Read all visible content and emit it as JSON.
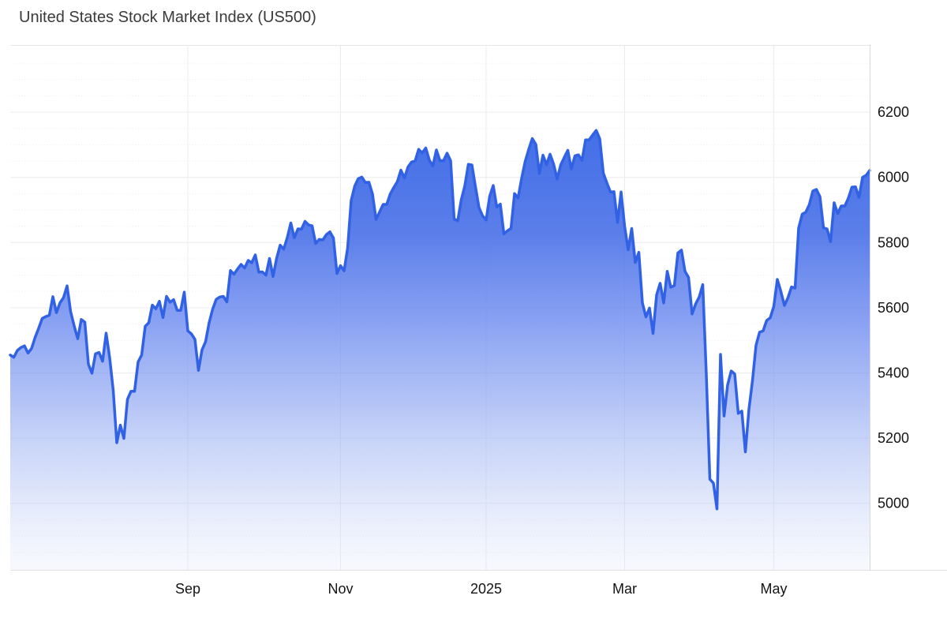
{
  "page": {
    "background": "#ffffff"
  },
  "chart_data": {
    "type": "area",
    "title": "United States Stock Market Index (US500)",
    "symbol": "US500",
    "legend": false,
    "grid": true,
    "y_axis": {
      "side": "right",
      "ticks": [
        6200,
        6000,
        5800,
        5600,
        5400,
        5200,
        5000
      ],
      "minor_step": 50,
      "ylim": [
        4796,
        6406
      ]
    },
    "x_axis": {
      "tick_labels": [
        "Sep",
        "Nov",
        "2025",
        "Mar",
        "May"
      ],
      "tick_indices": [
        50,
        93,
        134,
        173,
        215
      ]
    },
    "series": [
      {
        "name": "US500",
        "values": [
          5455,
          5448,
          5469,
          5478,
          5483,
          5461,
          5475,
          5509,
          5537,
          5567,
          5573,
          5577,
          5634,
          5585,
          5615,
          5631,
          5667,
          5588,
          5544,
          5505,
          5564,
          5556,
          5427,
          5399,
          5459,
          5463,
          5436,
          5522,
          5446,
          5346,
          5186,
          5240,
          5199,
          5319,
          5344,
          5344,
          5434,
          5455,
          5543,
          5554,
          5608,
          5597,
          5620,
          5570,
          5635,
          5617,
          5625,
          5592,
          5592,
          5648,
          5529,
          5520,
          5503,
          5408,
          5471,
          5496,
          5554,
          5596,
          5626,
          5633,
          5635,
          5618,
          5714,
          5703,
          5719,
          5733,
          5722,
          5745,
          5738,
          5762,
          5709,
          5710,
          5700,
          5751,
          5696,
          5751,
          5792,
          5780,
          5815,
          5860,
          5815,
          5842,
          5841,
          5865,
          5854,
          5851,
          5797,
          5810,
          5808,
          5824,
          5833,
          5814,
          5705,
          5729,
          5713,
          5783,
          5929,
          5973,
          5996,
          6001,
          5984,
          5985,
          5949,
          5871,
          5894,
          5917,
          5917,
          5949,
          5969,
          5987,
          6022,
          5998,
          6032,
          6047,
          6050,
          6086,
          6075,
          6090,
          6053,
          6035,
          6084,
          6051,
          6051,
          6074,
          6051,
          5872,
          5867,
          5931,
          5974,
          6040,
          6038,
          5971,
          5907,
          5882,
          5869,
          5942,
          5975,
          5909,
          5918,
          5827,
          5836,
          5843,
          5950,
          5937,
          5997,
          6049,
          6086,
          6119,
          6101,
          6012,
          6068,
          6039,
          6071,
          6041,
          5995,
          6038,
          6061,
          6083,
          6026,
          6066,
          6069,
          6052,
          6115,
          6115,
          6130,
          6144,
          6118,
          6013,
          5983,
          5955,
          5956,
          5862,
          5955,
          5850,
          5778,
          5843,
          5739,
          5770,
          5615,
          5572,
          5599,
          5521,
          5639,
          5675,
          5615,
          5712,
          5663,
          5668,
          5768,
          5777,
          5712,
          5693,
          5581,
          5612,
          5633,
          5671,
          5396,
          5074,
          5062,
          4983,
          5457,
          5268,
          5363,
          5406,
          5397,
          5276,
          5283,
          5158,
          5288,
          5376,
          5485,
          5525,
          5529,
          5561,
          5569,
          5604,
          5687,
          5650,
          5607,
          5631,
          5664,
          5660,
          5844,
          5887,
          5893,
          5916,
          5958,
          5963,
          5941,
          5845,
          5842,
          5803,
          5922,
          5889,
          5912,
          5912,
          5936,
          5970,
          5971,
          5939,
          6000,
          6006,
          6021
        ]
      }
    ],
    "colors": {
      "line": "#3161e4",
      "grid_major": "#ececec",
      "grid_minor": "#eeeeee",
      "grid_vertical": "#e8ecf2",
      "border_top": "#e6e6e6",
      "border_right": "#d8d8d8",
      "border_bottom": "#e0e0e0",
      "axis_text": "#141414",
      "title_text": "#3a3a3a",
      "fill_gradient": [
        {
          "offset": 0.0,
          "color": "rgba(43,92,226,0.97)"
        },
        {
          "offset": 0.13,
          "color": "rgba(52,100,229,0.95)"
        },
        {
          "offset": 0.36,
          "color": "rgba(73,112,231,0.90)"
        },
        {
          "offset": 0.52,
          "color": "rgba(105,136,239,0.80)"
        },
        {
          "offset": 0.68,
          "color": "rgba(138,163,241,0.65)"
        },
        {
          "offset": 0.84,
          "color": "rgba(175,193,244,0.45)"
        },
        {
          "offset": 1.0,
          "color": "rgba(213,222,250,0.18)"
        }
      ]
    }
  }
}
